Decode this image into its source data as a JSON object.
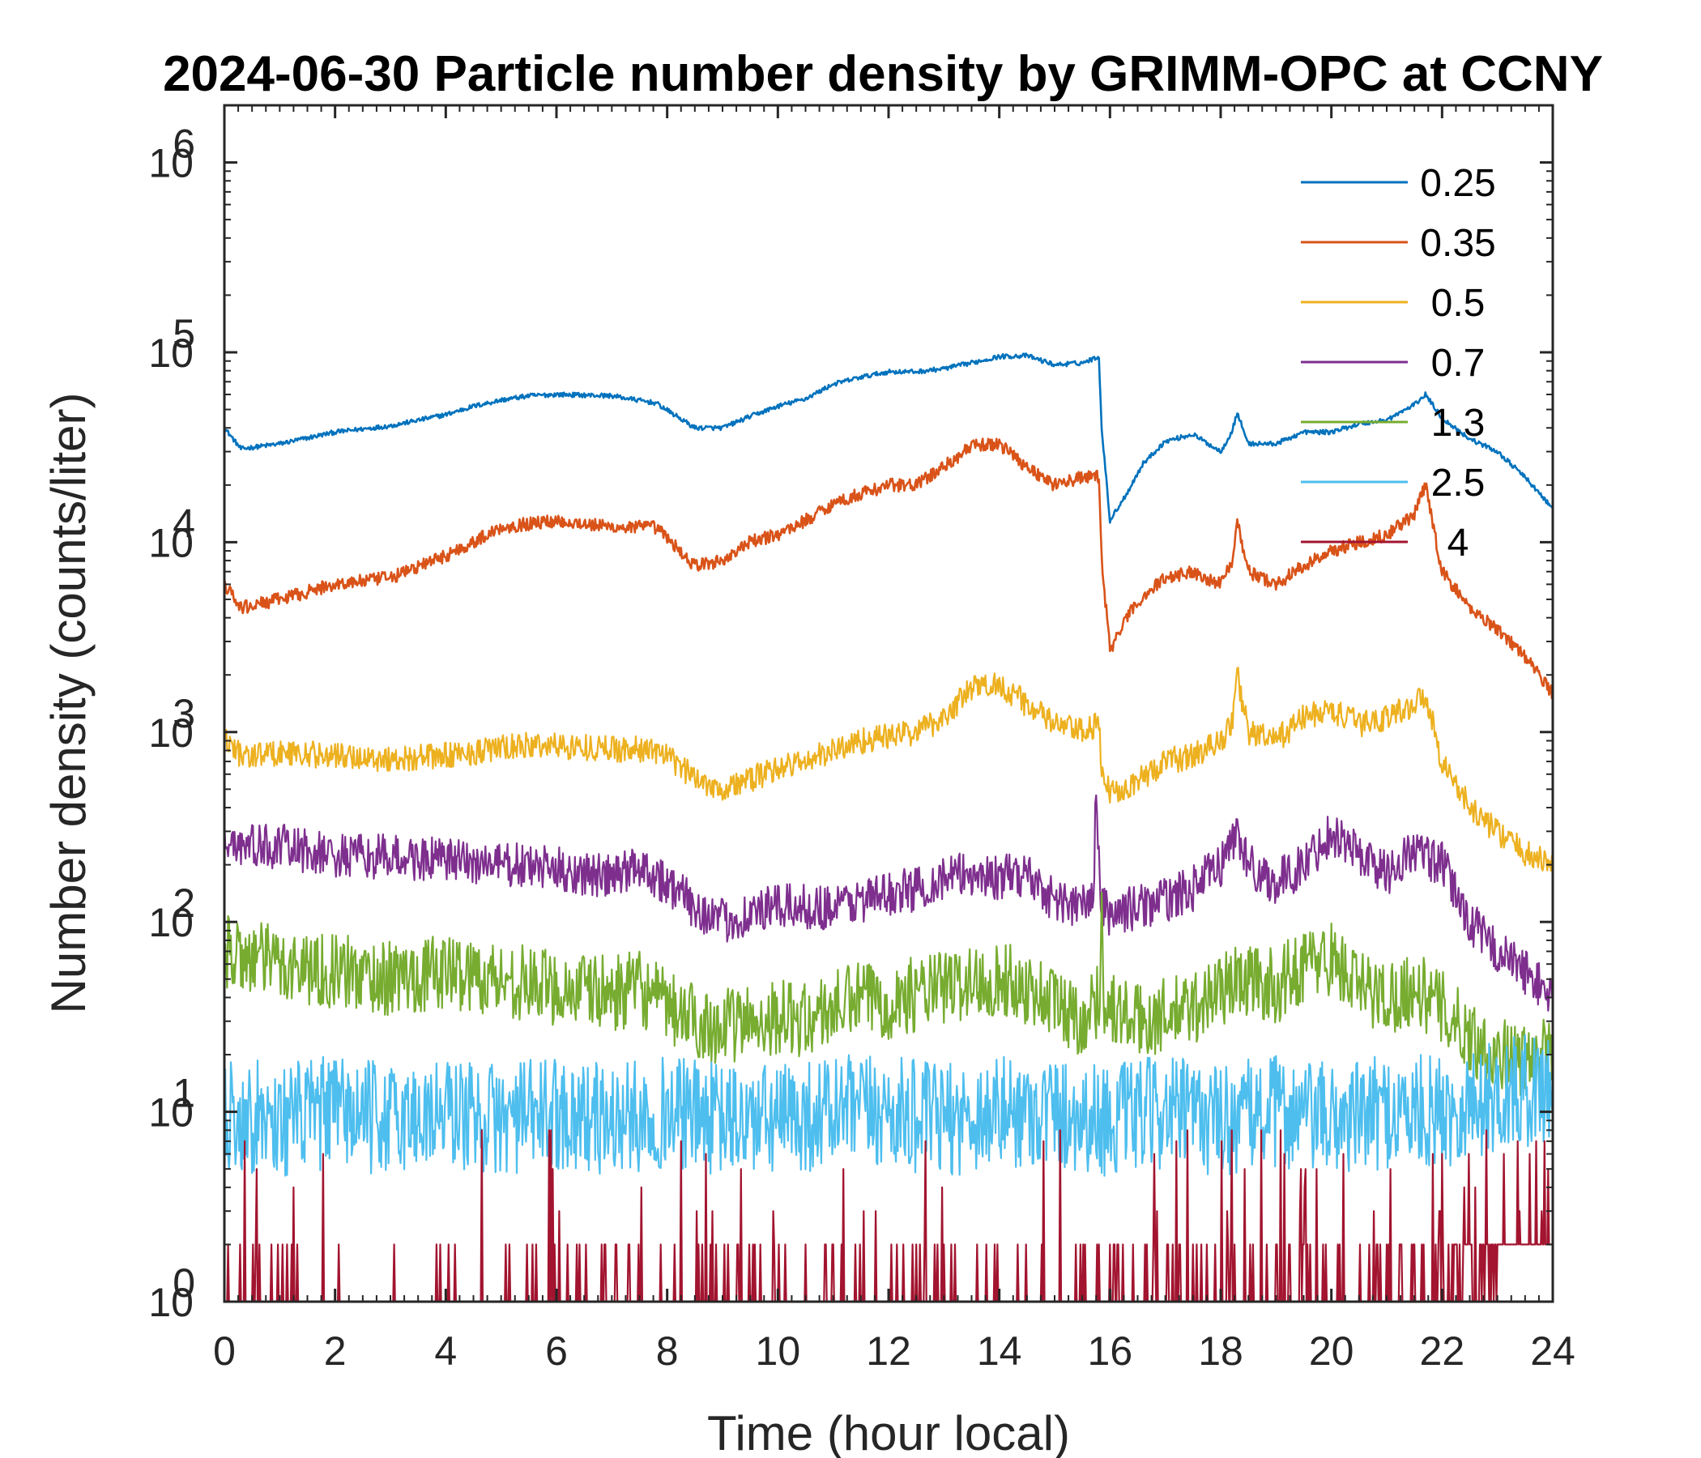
{
  "chart_data": {
    "type": "line",
    "title": "2024-06-30 Particle number density by GRIMM-OPC at CCNY",
    "xlabel": "Time (hour local)",
    "ylabel": "Number density (counts/liter)",
    "xlim": [
      0,
      24
    ],
    "ylim": [
      1,
      2000000
    ],
    "yscale": "log",
    "xticks": [
      0,
      2,
      4,
      6,
      8,
      10,
      12,
      14,
      16,
      18,
      20,
      22,
      24
    ],
    "xtick_labels": [
      "0",
      "2",
      "4",
      "6",
      "8",
      "10",
      "12",
      "14",
      "16",
      "18",
      "20",
      "22",
      "24"
    ],
    "yticks": [
      1,
      10,
      100,
      1000,
      10000,
      100000,
      1000000
    ],
    "ytick_labels": [
      {
        "base": "10",
        "exp": "0"
      },
      {
        "base": "10",
        "exp": "1"
      },
      {
        "base": "10",
        "exp": "2"
      },
      {
        "base": "10",
        "exp": "3"
      },
      {
        "base": "10",
        "exp": "4"
      },
      {
        "base": "10",
        "exp": "5"
      },
      {
        "base": "10",
        "exp": "6"
      }
    ],
    "legend_position": "top-right",
    "series": [
      {
        "name": "0.25",
        "color": "#0072BD",
        "x": [
          0,
          0.3,
          1,
          2,
          3,
          4,
          4.5,
          5,
          5.5,
          6,
          7,
          7.8,
          8.5,
          9,
          9.5,
          10,
          10.5,
          11,
          11.5,
          12,
          12.5,
          13,
          13.5,
          14,
          14.5,
          15,
          15.5,
          15.8,
          15.85,
          16,
          16.3,
          16.6,
          17,
          17.5,
          18,
          18.2,
          18.3,
          18.5,
          19,
          19.5,
          20,
          20.5,
          21,
          21.5,
          21.7,
          22,
          22.5,
          23,
          23.5,
          24
        ],
        "y": [
          40000,
          31000,
          33000,
          38000,
          41000,
          47000,
          52000,
          56000,
          59000,
          60000,
          59000,
          54000,
          40000,
          40000,
          46000,
          52000,
          57000,
          68000,
          74000,
          79000,
          79000,
          82000,
          88000,
          95000,
          96000,
          86000,
          88000,
          95000,
          40000,
          13000,
          18000,
          26000,
          34000,
          37000,
          30000,
          38000,
          48000,
          33000,
          33000,
          38000,
          38000,
          42000,
          44000,
          53000,
          60000,
          45000,
          35000,
          30000,
          22000,
          15000
        ]
      },
      {
        "name": "0.35",
        "color": "#D95319",
        "x": [
          0,
          0.3,
          1,
          2,
          3,
          4,
          4.5,
          5,
          5.5,
          6,
          7,
          7.8,
          8.5,
          9,
          9.5,
          10,
          10.5,
          11,
          11.5,
          12,
          12.5,
          13,
          13.5,
          14,
          14.5,
          15,
          15.5,
          15.8,
          15.85,
          16,
          16.3,
          16.6,
          17,
          17.5,
          18,
          18.2,
          18.3,
          18.5,
          19,
          19.5,
          20,
          20.5,
          21,
          21.5,
          21.7,
          22,
          22.5,
          23,
          23.5,
          24
        ],
        "y": [
          6000,
          4500,
          5000,
          6000,
          6500,
          8500,
          10000,
          12000,
          12500,
          13000,
          12000,
          12000,
          7500,
          8000,
          10000,
          11000,
          13000,
          16000,
          18000,
          20000,
          20000,
          25000,
          32000,
          33000,
          25000,
          20000,
          22000,
          22000,
          8000,
          2700,
          4000,
          5200,
          6500,
          7000,
          6000,
          8000,
          13000,
          7000,
          6000,
          7500,
          9000,
          10000,
          11000,
          14000,
          20000,
          7000,
          4500,
          3500,
          2500,
          1600
        ]
      },
      {
        "name": "0.5",
        "color": "#EDB120",
        "x": [
          0,
          0.3,
          1,
          2,
          3,
          4,
          5,
          5.5,
          6,
          7,
          7.8,
          8.5,
          9,
          9.5,
          10,
          10.5,
          11,
          11.5,
          12,
          12.5,
          13,
          13.5,
          14,
          14.5,
          15,
          15.5,
          15.8,
          15.85,
          16,
          16.5,
          17,
          17.5,
          18,
          18.2,
          18.3,
          18.5,
          19,
          19.5,
          20,
          20.5,
          21,
          21.5,
          21.7,
          22,
          22.5,
          23,
          23.5,
          24
        ],
        "y": [
          950,
          750,
          780,
          750,
          720,
          750,
          820,
          850,
          850,
          820,
          800,
          580,
          500,
          560,
          650,
          700,
          800,
          900,
          950,
          1000,
          1200,
          1700,
          1800,
          1400,
          1100,
          1000,
          1100,
          600,
          480,
          550,
          700,
          750,
          900,
          1100,
          2000,
          1000,
          900,
          1200,
          1300,
          1100,
          1200,
          1400,
          1600,
          700,
          400,
          300,
          230,
          200
        ]
      },
      {
        "name": "0.7",
        "color": "#7E2F8E",
        "x": [
          0,
          0.3,
          1,
          2,
          3,
          4,
          5,
          6,
          7,
          7.5,
          8,
          8.5,
          9,
          9.5,
          10,
          10.5,
          11,
          11.5,
          12,
          12.5,
          13,
          13.5,
          14,
          14.5,
          15,
          15.5,
          15.7,
          15.75,
          15.8,
          15.85,
          16,
          16.5,
          17,
          17.5,
          18,
          18.3,
          18.5,
          19,
          19.5,
          20,
          20.5,
          21,
          21.5,
          21.7,
          22,
          22.5,
          23,
          23.5,
          24
        ],
        "y": [
          280,
          250,
          250,
          220,
          220,
          210,
          200,
          190,
          170,
          200,
          160,
          120,
          100,
          110,
          120,
          120,
          120,
          130,
          140,
          150,
          170,
          180,
          170,
          180,
          130,
          120,
          140,
          500,
          200,
          120,
          110,
          120,
          130,
          150,
          200,
          300,
          200,
          160,
          200,
          300,
          230,
          180,
          240,
          220,
          200,
          100,
          70,
          55,
          40
        ]
      },
      {
        "name": "1.3",
        "color": "#77AC30",
        "x": [
          0,
          0.5,
          1,
          2,
          3,
          4,
          5,
          6,
          7,
          7.5,
          8,
          8.5,
          9,
          9.5,
          10,
          10.5,
          11,
          11.5,
          12,
          12.5,
          13,
          13.5,
          14,
          14.5,
          15,
          15.5,
          15.8,
          15.85,
          15.9,
          16,
          16.5,
          17,
          17.5,
          18,
          18.5,
          19,
          19.5,
          20,
          20.5,
          21,
          21.5,
          22,
          22.5,
          23,
          23.5,
          24
        ],
        "y": [
          70,
          65,
          60,
          55,
          50,
          55,
          50,
          45,
          42,
          45,
          35,
          30,
          28,
          30,
          32,
          30,
          35,
          40,
          38,
          42,
          45,
          48,
          50,
          45,
          38,
          30,
          40,
          100,
          40,
          35,
          30,
          32,
          35,
          45,
          50,
          45,
          60,
          65,
          45,
          40,
          45,
          35,
          25,
          20,
          18,
          20
        ]
      },
      {
        "name": "2.5",
        "color": "#4DBEEE",
        "x": [
          0,
          1,
          2,
          3,
          4,
          5,
          6,
          7,
          8,
          9,
          10,
          11,
          12,
          13,
          14,
          15,
          16,
          17,
          18,
          19,
          20,
          21,
          22,
          23,
          24
        ],
        "y": [
          10,
          9,
          10,
          9,
          10,
          9,
          10,
          9,
          10,
          9,
          9,
          10,
          10,
          9,
          10,
          10,
          9,
          10,
          9,
          10,
          9,
          10,
          10,
          12,
          14
        ]
      },
      {
        "name": "4",
        "color": "#A2142F",
        "x": [
          0,
          1,
          2,
          3,
          4,
          5,
          6,
          7,
          8,
          9,
          10,
          11,
          12,
          13,
          14,
          15,
          16,
          17,
          18,
          19,
          20,
          21,
          22,
          23,
          24
        ],
        "y": [
          1.5,
          1.4,
          1.3,
          1.2,
          1.2,
          1.3,
          1.4,
          1.5,
          1.4,
          1.3,
          1.3,
          1.4,
          1.4,
          1.3,
          1.3,
          1.4,
          1.5,
          1.5,
          1.6,
          1.6,
          1.5,
          1.5,
          2,
          3.5,
          4
        ]
      }
    ]
  }
}
